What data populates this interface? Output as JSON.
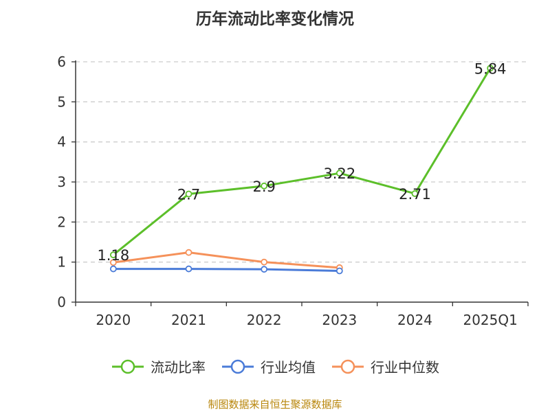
{
  "chart_data": {
    "type": "line",
    "title": "历年流动比率变化情况",
    "categories": [
      "2020",
      "2021",
      "2022",
      "2023",
      "2024",
      "2025Q1"
    ],
    "ylim": [
      0,
      6
    ],
    "yticks": [
      0,
      1,
      2,
      3,
      4,
      5,
      6
    ],
    "grid": true,
    "legend_position": "bottom",
    "series": [
      {
        "name": "流动比率",
        "color": "#5cbf2a",
        "values": [
          1.18,
          2.7,
          2.9,
          3.22,
          2.71,
          5.84
        ],
        "show_labels": true
      },
      {
        "name": "行业均值",
        "color": "#4a7bd8",
        "values": [
          0.83,
          0.83,
          0.82,
          0.78,
          null,
          null
        ],
        "show_labels": false
      },
      {
        "name": "行业中位数",
        "color": "#f5915a",
        "values": [
          0.99,
          1.24,
          1.0,
          0.86,
          null,
          null
        ],
        "show_labels": false
      }
    ],
    "source": "制图数据来自恒生聚源数据库"
  }
}
